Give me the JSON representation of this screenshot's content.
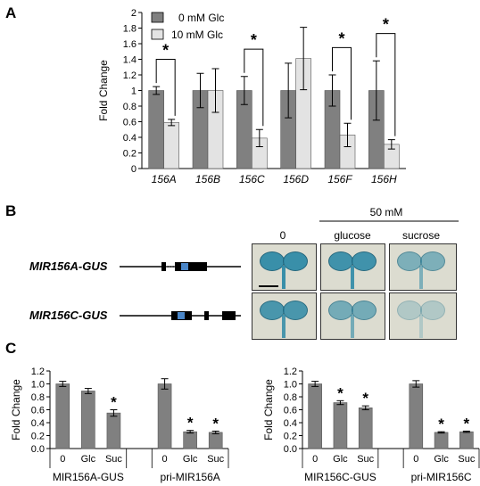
{
  "panel_labels": {
    "a": "A",
    "b": "B",
    "c": "C"
  },
  "colors": {
    "dark_bar": "#808080",
    "light_bar": "#e3e3e3",
    "exon": "#000000",
    "gus_box": "#4a86c8",
    "stain": "#2f8aa6"
  },
  "panelA": {
    "significance_marker": "*",
    "chart_data": {
      "type": "bar",
      "ylabel": "Fold Change",
      "xlabel": "",
      "ylim": [
        0,
        2
      ],
      "yticks": [
        "0",
        "0.2",
        "0.4",
        "0.6",
        "0.8",
        "1",
        "1.2",
        "1.4",
        "1.6",
        "1.8",
        "2"
      ],
      "categories": [
        "156A",
        "156B",
        "156C",
        "156D",
        "156F",
        "156H"
      ],
      "legend_position": "top-left",
      "series": [
        {
          "name": "0 mM Glc",
          "values": [
            1.0,
            1.0,
            1.0,
            1.0,
            1.0,
            1.0
          ],
          "errors": [
            0.05,
            0.22,
            0.18,
            0.35,
            0.2,
            0.38
          ]
        },
        {
          "name": "10 mM Glc",
          "values": [
            0.59,
            1.0,
            0.39,
            1.41,
            0.43,
            0.31
          ],
          "errors": [
            0.04,
            0.28,
            0.11,
            0.4,
            0.15,
            0.06
          ]
        }
      ],
      "significant": [
        true,
        false,
        true,
        false,
        true,
        true
      ]
    }
  },
  "panelB": {
    "constructs": [
      "MIR156A-GUS",
      "MIR156C-GUS"
    ],
    "treatment_header": "50 mM",
    "column_labels": [
      "0",
      "glucose",
      "sucrose"
    ]
  },
  "panelC": {
    "significance_marker": "*",
    "chart_data": [
      {
        "type": "bar",
        "ylabel": "Fold Change",
        "ylim": [
          0,
          1.2
        ],
        "yticks": [
          "0.0",
          "0.2",
          "0.4",
          "0.6",
          "0.8",
          "1.0",
          "1.2"
        ],
        "groups": [
          "MIR156A-GUS",
          "pri-MIR156A"
        ],
        "categories": [
          "0",
          "Glc",
          "Suc",
          "0",
          "Glc",
          "Suc"
        ],
        "values": [
          1.0,
          0.89,
          0.55,
          1.0,
          0.26,
          0.25
        ],
        "errors": [
          0.04,
          0.04,
          0.05,
          0.08,
          0.02,
          0.02
        ],
        "significant": [
          false,
          false,
          true,
          false,
          true,
          true
        ]
      },
      {
        "type": "bar",
        "ylabel": "Fold Change",
        "ylim": [
          0,
          1.2
        ],
        "yticks": [
          "0.0",
          "0.2",
          "0.4",
          "0.6",
          "0.8",
          "1.0",
          "1.2"
        ],
        "groups": [
          "MIR156C-GUS",
          "pri-MIR156C"
        ],
        "categories": [
          "0",
          "Glc",
          "Suc",
          "0",
          "Glc",
          "Suc"
        ],
        "values": [
          1.0,
          0.71,
          0.63,
          1.0,
          0.25,
          0.26
        ],
        "errors": [
          0.04,
          0.03,
          0.03,
          0.05,
          0.01,
          0.01
        ],
        "significant": [
          false,
          true,
          true,
          false,
          true,
          true
        ]
      }
    ]
  }
}
